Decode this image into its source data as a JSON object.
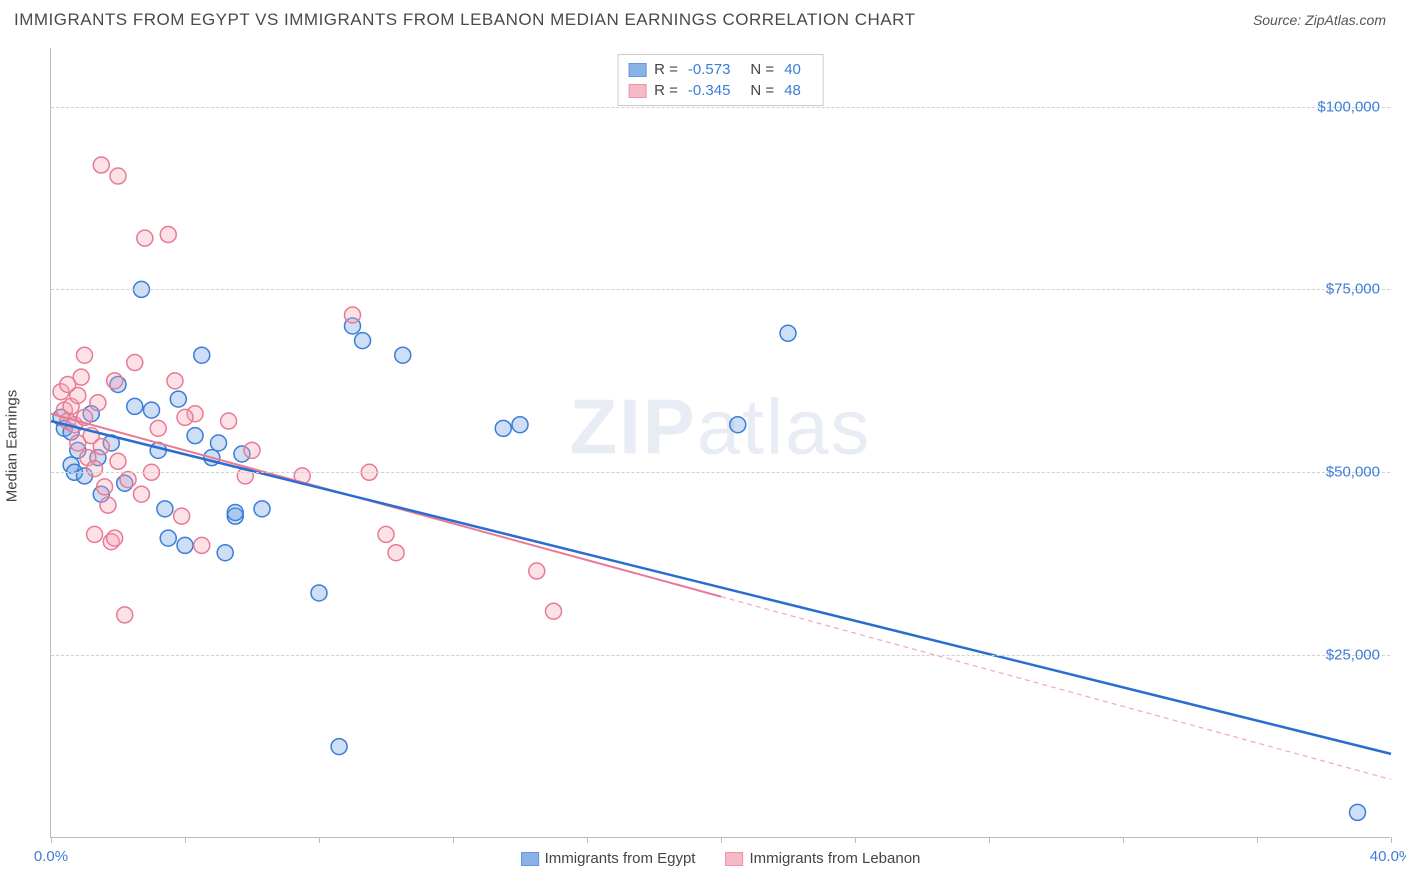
{
  "header": {
    "title": "IMMIGRANTS FROM EGYPT VS IMMIGRANTS FROM LEBANON MEDIAN EARNINGS CORRELATION CHART",
    "source": "Source: ZipAtlas.com"
  },
  "chart": {
    "type": "scatter",
    "y_axis_label": "Median Earnings",
    "watermark": "ZIPatlas",
    "background_color": "#ffffff",
    "grid_color": "#d0d0d0",
    "axis_color": "#bbbbbb",
    "text_color": "#444444",
    "tick_label_color": "#3b7dd8",
    "xlim": [
      0,
      40
    ],
    "ylim": [
      0,
      108000
    ],
    "x_tick_positions": [
      0,
      4,
      8,
      12,
      16,
      20,
      24,
      28,
      32,
      36,
      40
    ],
    "x_tick_labels": {
      "0": "0.0%",
      "40": "40.0%"
    },
    "y_ticks": [
      25000,
      50000,
      75000,
      100000
    ],
    "y_tick_labels": [
      "$25,000",
      "$50,000",
      "$75,000",
      "$100,000"
    ],
    "marker_radius": 8,
    "marker_stroke_width": 1.5,
    "marker_fill_opacity": 0.35,
    "series": [
      {
        "name": "Immigrants from Egypt",
        "color": "#6fa0e2",
        "stroke": "#3b7dd8",
        "r": -0.573,
        "n": 40,
        "regression": {
          "x1": 0,
          "y1": 57000,
          "x2": 40,
          "y2": 11500,
          "style": "solid",
          "width": 2.5,
          "color": "#2a6dd0"
        },
        "points": [
          [
            0.3,
            57500
          ],
          [
            0.4,
            56000
          ],
          [
            0.6,
            55500
          ],
          [
            0.6,
            51000
          ],
          [
            0.7,
            50000
          ],
          [
            0.8,
            53000
          ],
          [
            1.0,
            49500
          ],
          [
            1.2,
            58000
          ],
          [
            1.4,
            52000
          ],
          [
            1.5,
            47000
          ],
          [
            1.8,
            54000
          ],
          [
            2.0,
            62000
          ],
          [
            2.2,
            48500
          ],
          [
            2.5,
            59000
          ],
          [
            2.7,
            75000
          ],
          [
            3.0,
            58500
          ],
          [
            3.2,
            53000
          ],
          [
            3.4,
            45000
          ],
          [
            3.5,
            41000
          ],
          [
            3.8,
            60000
          ],
          [
            4.0,
            40000
          ],
          [
            4.3,
            55000
          ],
          [
            4.5,
            66000
          ],
          [
            4.8,
            52000
          ],
          [
            5.0,
            54000
          ],
          [
            5.2,
            39000
          ],
          [
            5.5,
            44000
          ],
          [
            5.5,
            44500
          ],
          [
            5.7,
            52500
          ],
          [
            6.3,
            45000
          ],
          [
            8.0,
            33500
          ],
          [
            8.6,
            12500
          ],
          [
            9.0,
            70000
          ],
          [
            9.3,
            68000
          ],
          [
            10.5,
            66000
          ],
          [
            13.5,
            56000
          ],
          [
            14.0,
            56500
          ],
          [
            20.5,
            56500
          ],
          [
            22.0,
            69000
          ],
          [
            39.0,
            3500
          ]
        ]
      },
      {
        "name": "Immigrants from Lebanon",
        "color": "#f5a8b8",
        "stroke": "#e87a94",
        "r": -0.345,
        "n": 48,
        "regression": {
          "x1": 0,
          "y1": 58000,
          "x2": 20,
          "y2": 33000,
          "style": "solid",
          "width": 2,
          "color": "#e87a94"
        },
        "regression_extension": {
          "x1": 20,
          "y1": 33000,
          "x2": 40,
          "y2": 8000,
          "style": "dashed",
          "width": 1.2,
          "color": "#f5a8b8"
        },
        "points": [
          [
            0.3,
            61000
          ],
          [
            0.4,
            58500
          ],
          [
            0.5,
            57000
          ],
          [
            0.5,
            62000
          ],
          [
            0.6,
            59000
          ],
          [
            0.7,
            56500
          ],
          [
            0.8,
            60500
          ],
          [
            0.8,
            54000
          ],
          [
            0.9,
            63000
          ],
          [
            1.0,
            57500
          ],
          [
            1.0,
            66000
          ],
          [
            1.1,
            52000
          ],
          [
            1.2,
            55000
          ],
          [
            1.3,
            50500
          ],
          [
            1.3,
            41500
          ],
          [
            1.4,
            59500
          ],
          [
            1.5,
            53500
          ],
          [
            1.5,
            92000
          ],
          [
            1.6,
            48000
          ],
          [
            1.7,
            45500
          ],
          [
            1.8,
            40500
          ],
          [
            1.9,
            62500
          ],
          [
            1.9,
            41000
          ],
          [
            2.0,
            51500
          ],
          [
            2.0,
            90500
          ],
          [
            2.2,
            30500
          ],
          [
            2.3,
            49000
          ],
          [
            2.5,
            65000
          ],
          [
            2.7,
            47000
          ],
          [
            2.8,
            82000
          ],
          [
            3.0,
            50000
          ],
          [
            3.2,
            56000
          ],
          [
            3.5,
            82500
          ],
          [
            3.7,
            62500
          ],
          [
            3.9,
            44000
          ],
          [
            4.3,
            58000
          ],
          [
            4.5,
            40000
          ],
          [
            5.3,
            57000
          ],
          [
            5.8,
            49500
          ],
          [
            6.0,
            53000
          ],
          [
            7.5,
            49500
          ],
          [
            9.0,
            71500
          ],
          [
            9.5,
            50000
          ],
          [
            10.0,
            41500
          ],
          [
            10.3,
            39000
          ],
          [
            14.5,
            36500
          ],
          [
            15.0,
            31000
          ],
          [
            4.0,
            57500
          ]
        ]
      }
    ],
    "legend_top": {
      "r_label": "R =",
      "n_label": "N ="
    }
  }
}
